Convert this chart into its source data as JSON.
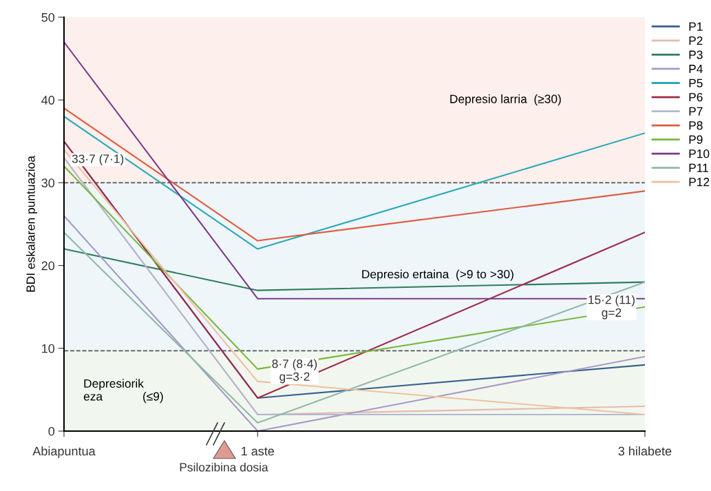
{
  "chart_data": {
    "type": "line",
    "ylabel": "BDI eskalaren puntuazioa",
    "x": [
      0,
      1,
      3
    ],
    "xlim": [
      0,
      3
    ],
    "xticks": [
      {
        "value": 0,
        "label": "Abiapuntua"
      },
      {
        "value": 1,
        "label": "1 aste"
      },
      {
        "value": 3,
        "label": "3 hilabete"
      }
    ],
    "ylim": [
      0,
      50
    ],
    "yticks": [
      0,
      10,
      20,
      30,
      40,
      50
    ],
    "series": [
      {
        "name": "P1",
        "color": "#3a5f8f",
        "values": [
          35,
          4,
          8
        ]
      },
      {
        "name": "P2",
        "color": "#e8b8b0",
        "values": [
          33,
          2,
          3
        ]
      },
      {
        "name": "P3",
        "color": "#2e7d5b",
        "values": [
          22,
          17,
          18
        ]
      },
      {
        "name": "P4",
        "color": "#a898c8",
        "values": [
          26,
          0,
          9
        ]
      },
      {
        "name": "P5",
        "color": "#2aa8b8",
        "values": [
          38,
          22,
          36
        ]
      },
      {
        "name": "P6",
        "color": "#a0284c",
        "values": [
          35,
          4,
          24
        ]
      },
      {
        "name": "P7",
        "color": "#b0b8d0",
        "values": [
          33,
          2,
          2
        ]
      },
      {
        "name": "P8",
        "color": "#e05a40",
        "values": [
          39,
          23,
          29
        ]
      },
      {
        "name": "P9",
        "color": "#78b840",
        "values": [
          32,
          7.5,
          15
        ]
      },
      {
        "name": "P10",
        "color": "#7a3a8a",
        "values": [
          47,
          16,
          16
        ]
      },
      {
        "name": "P11",
        "color": "#90b8a8",
        "values": [
          24,
          1,
          18
        ]
      },
      {
        "name": "P12",
        "color": "#f0c0a0",
        "values": [
          34,
          6,
          2
        ]
      }
    ],
    "bands": [
      {
        "axis": "y",
        "from": 30,
        "to": 50,
        "label": "Depresio larria  (≥30)",
        "color": "#fcefec"
      },
      {
        "axis": "y",
        "from": 9.7,
        "to": 30,
        "label": "Depresio ertaina  (>9 to >30)",
        "color": "#eef6fa"
      },
      {
        "axis": "y",
        "from": 0,
        "to": 9.7,
        "label": "Depresiorik\neza            (≤9)",
        "color": "#f1f7ef"
      }
    ],
    "ref_lines": [
      {
        "axis": "y",
        "value": 30,
        "color": "#555555",
        "line_style": "dashed"
      },
      {
        "axis": "y",
        "value": 9.7,
        "color": "#555555",
        "line_style": "dashed"
      }
    ],
    "annotations": [
      {
        "text": "33·7 (7·1)",
        "x": 0,
        "y": 33.7
      },
      "8·7 (8·4)\ng=3·2",
      {
        "text": "15·2 (11)\ng=2",
        "x": 3,
        "y": 15.2
      },
      "Psilozibina dosia"
    ],
    "legend": "top right",
    "grid": false,
    "marker": "none",
    "line_style": "solid"
  }
}
